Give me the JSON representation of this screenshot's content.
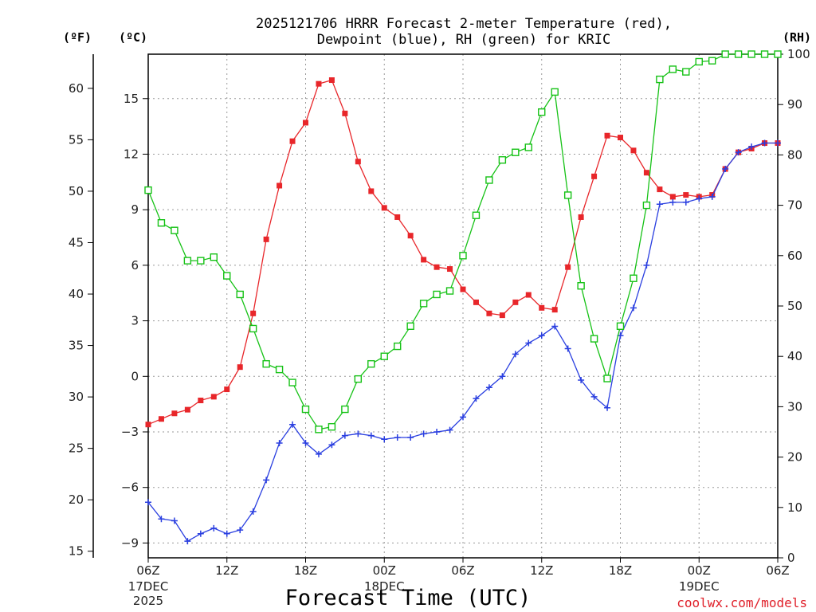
{
  "chart_data": {
    "type": "line",
    "title_line1": "2025121706 HRRR Forecast 2-meter Temperature (red),",
    "title_line2": "Dewpoint (blue), RH (green) for KRIC",
    "xlabel": "Forecast Time (UTC)",
    "credit": "coolwx.com/models",
    "units": {
      "fahrenheit": "(ºF)",
      "celsius": "(ºC)",
      "rh": "(RH)"
    },
    "x_ticks": [
      {
        "hour": 0,
        "label": "06Z",
        "date": "17DEC",
        "year": "2025"
      },
      {
        "hour": 6,
        "label": "12Z"
      },
      {
        "hour": 12,
        "label": "18Z"
      },
      {
        "hour": 18,
        "label": "00Z",
        "date": "18DEC"
      },
      {
        "hour": 24,
        "label": "06Z"
      },
      {
        "hour": 30,
        "label": "12Z"
      },
      {
        "hour": 36,
        "label": "18Z"
      },
      {
        "hour": 42,
        "label": "00Z",
        "date": "19DEC"
      },
      {
        "hour": 48,
        "label": "06Z"
      }
    ],
    "xlim": [
      0,
      48
    ],
    "celsius_ylim": [
      -9.8,
      17.4
    ],
    "celsius_ticks": [
      -9,
      -6,
      -3,
      0,
      3,
      6,
      9,
      12,
      15
    ],
    "fahrenheit_ticks": [
      15,
      20,
      25,
      30,
      35,
      40,
      45,
      50,
      55,
      60
    ],
    "rh_ylim": [
      0,
      100
    ],
    "rh_ticks": [
      0,
      10,
      20,
      30,
      40,
      50,
      60,
      70,
      80,
      90,
      100
    ],
    "colors": {
      "temperature": "#e8262a",
      "dewpoint": "#2a3fe0",
      "rh": "#16c216",
      "grid": "#9a9a9a"
    },
    "series": [
      {
        "key": "temperature",
        "axis": "celsius",
        "marker": "filled-square",
        "x": [
          0,
          1,
          2,
          3,
          4,
          5,
          6,
          7,
          8,
          9,
          10,
          11,
          12,
          13,
          14,
          15,
          16,
          17,
          18,
          19,
          20,
          21,
          22,
          23,
          24,
          25,
          26,
          27,
          28,
          29,
          30,
          31,
          32,
          33,
          34,
          35,
          36,
          37,
          38,
          39,
          40,
          41,
          42,
          43,
          44,
          45,
          46,
          47,
          48
        ],
        "values": [
          -2.6,
          -2.3,
          -2.0,
          -1.8,
          -1.3,
          -1.1,
          -0.7,
          0.5,
          3.4,
          7.4,
          10.3,
          12.7,
          13.7,
          15.8,
          16.0,
          14.2,
          11.6,
          10.0,
          9.1,
          8.6,
          7.6,
          6.3,
          5.9,
          5.8,
          4.7,
          4.0,
          3.4,
          3.3,
          4.0,
          4.4,
          3.7,
          3.6,
          5.9,
          8.6,
          10.8,
          13.0,
          12.9,
          12.2,
          11.0,
          10.1,
          9.7,
          9.8,
          9.7,
          9.8,
          11.2,
          12.1,
          12.3,
          12.6,
          12.6
        ]
      },
      {
        "key": "dewpoint",
        "axis": "celsius",
        "marker": "plus",
        "x": [
          0,
          1,
          2,
          3,
          4,
          5,
          6,
          7,
          8,
          9,
          10,
          11,
          12,
          13,
          14,
          15,
          16,
          17,
          18,
          19,
          20,
          21,
          22,
          23,
          24,
          25,
          26,
          27,
          28,
          29,
          30,
          31,
          32,
          33,
          34,
          35,
          36,
          37,
          38,
          39,
          40,
          41,
          42,
          43,
          44,
          45,
          46,
          47,
          48
        ],
        "values": [
          -6.8,
          -7.7,
          -7.8,
          -8.9,
          -8.5,
          -8.2,
          -8.5,
          -8.3,
          -7.3,
          -5.6,
          -3.6,
          -2.6,
          -3.6,
          -4.2,
          -3.7,
          -3.2,
          -3.1,
          -3.2,
          -3.4,
          -3.3,
          -3.3,
          -3.1,
          -3.0,
          -2.9,
          -2.2,
          -1.2,
          -0.6,
          0.0,
          1.2,
          1.8,
          2.2,
          2.7,
          1.5,
          -0.2,
          -1.1,
          -1.7,
          2.2,
          3.7,
          6.0,
          9.3,
          9.4,
          9.4,
          9.6,
          9.7,
          11.2,
          12.1,
          12.4,
          12.6,
          12.6
        ]
      },
      {
        "key": "rh",
        "axis": "rh",
        "marker": "open-square",
        "x": [
          0,
          1,
          2,
          3,
          4,
          5,
          6,
          7,
          8,
          9,
          10,
          11,
          12,
          13,
          14,
          15,
          16,
          17,
          18,
          19,
          20,
          21,
          22,
          23,
          24,
          25,
          26,
          27,
          28,
          29,
          30,
          31,
          32,
          33,
          34,
          35,
          36,
          37,
          38,
          39,
          40,
          41,
          42,
          43,
          44,
          45,
          46,
          47,
          48
        ],
        "values": [
          73,
          66.5,
          65,
          59,
          59,
          59.7,
          56,
          52.3,
          45.5,
          38.5,
          37.4,
          34.8,
          29.5,
          25.5,
          26,
          29.5,
          35.5,
          38.5,
          40,
          42,
          46,
          50.5,
          52.3,
          53,
          60,
          68,
          75,
          79,
          80.5,
          81.5,
          88.5,
          92.5,
          72,
          54,
          43.5,
          35.6,
          46,
          55.5,
          70,
          95,
          97,
          96.5,
          98.5,
          98.7,
          100,
          100,
          100,
          100,
          100
        ]
      }
    ]
  }
}
